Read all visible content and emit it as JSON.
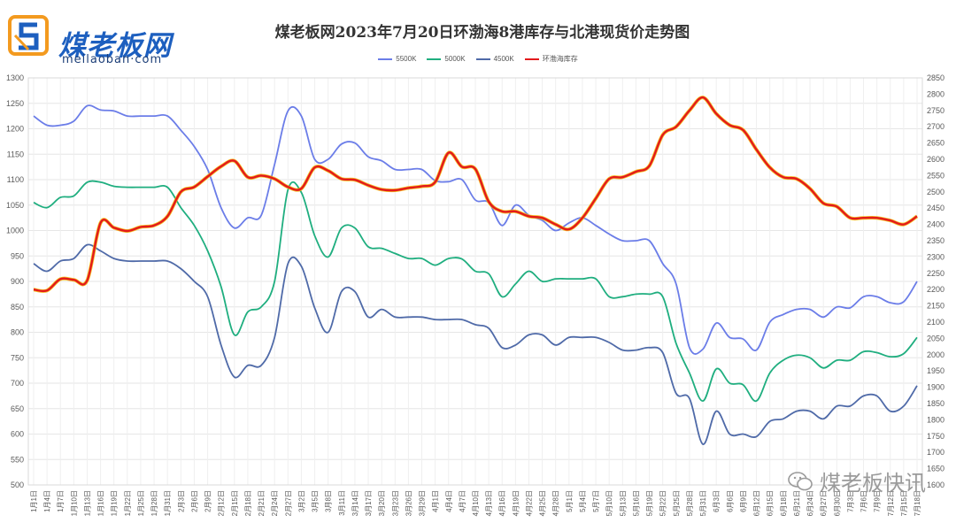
{
  "logo": {
    "name": "煤老板网",
    "domain": "meilaoban·com"
  },
  "watermark": "煤老板快讯",
  "chart_data": {
    "type": "line",
    "title": "煤老板网2023年7月20日环渤海8港库存与北港现货价走势图",
    "xlabel": "",
    "ylabel": "",
    "ylabel_right": "",
    "ylim": [
      500,
      1300
    ],
    "ylim_right": [
      1600,
      2850
    ],
    "yticks": [
      500,
      550,
      600,
      650,
      700,
      750,
      800,
      850,
      900,
      950,
      1000,
      1050,
      1100,
      1150,
      1200,
      1250,
      1300
    ],
    "yticks_right": [
      1600,
      1650,
      1700,
      1750,
      1800,
      1850,
      1900,
      1950,
      2000,
      2050,
      2100,
      2150,
      2200,
      2250,
      2300,
      2350,
      2400,
      2450,
      2500,
      2550,
      2600,
      2650,
      2700,
      2750,
      2800,
      2850
    ],
    "grid": true,
    "legend_position": "top-center",
    "x": [
      "1月1日",
      "1月4日",
      "1月7日",
      "1月10日",
      "1月13日",
      "1月16日",
      "1月19日",
      "1月22日",
      "1月25日",
      "1月28日",
      "1月31日",
      "2月3日",
      "2月6日",
      "2月9日",
      "2月12日",
      "2月15日",
      "2月18日",
      "2月21日",
      "2月24日",
      "2月27日",
      "3月2日",
      "3月5日",
      "3月8日",
      "3月11日",
      "3月14日",
      "3月17日",
      "3月20日",
      "3月23日",
      "3月26日",
      "3月29日",
      "4月1日",
      "4月4日",
      "4月7日",
      "4月10日",
      "4月13日",
      "4月16日",
      "4月19日",
      "4月22日",
      "4月25日",
      "4月28日",
      "5月1日",
      "5月4日",
      "5月7日",
      "5月10日",
      "5月13日",
      "5月16日",
      "5月19日",
      "5月22日",
      "5月25日",
      "5月28日",
      "5月31日",
      "6月3日",
      "6月6日",
      "6月9日",
      "6月12日",
      "6月15日",
      "6月18日",
      "6月21日",
      "6月24日",
      "6月27日",
      "6月30日",
      "7月3日",
      "7月6日",
      "7月9日",
      "7月12日",
      "7月15日",
      "7月18日"
    ],
    "series": [
      {
        "name": "5500K",
        "color": "#6b7de8",
        "axis": "left",
        "values": [
          1225,
          1207,
          1207,
          1215,
          1245,
          1237,
          1235,
          1225,
          1225,
          1225,
          1225,
          1197,
          1165,
          1120,
          1045,
          1005,
          1025,
          1030,
          1130,
          1235,
          1225,
          1140,
          1140,
          1170,
          1172,
          1145,
          1137,
          1120,
          1120,
          1120,
          1098,
          1096,
          1100,
          1060,
          1055,
          1010,
          1050,
          1030,
          1020,
          1000,
          1015,
          1025,
          1010,
          993,
          980,
          980,
          980,
          935,
          895,
          770,
          767,
          818,
          790,
          787,
          765,
          820,
          835,
          845,
          845,
          830,
          850,
          848,
          870,
          870,
          858,
          860,
          900
        ]
      },
      {
        "name": "5000K",
        "color": "#1fae7f",
        "axis": "left",
        "values": [
          1055,
          1045,
          1065,
          1068,
          1095,
          1095,
          1087,
          1085,
          1085,
          1085,
          1085,
          1045,
          1010,
          960,
          890,
          795,
          840,
          850,
          900,
          1080,
          1075,
          990,
          948,
          1005,
          1005,
          968,
          965,
          955,
          945,
          945,
          932,
          945,
          944,
          920,
          915,
          870,
          895,
          920,
          900,
          905,
          905,
          905,
          905,
          870,
          870,
          875,
          875,
          870,
          778,
          720,
          665,
          728,
          700,
          697,
          665,
          720,
          745,
          755,
          750,
          730,
          745,
          745,
          762,
          760,
          752,
          758,
          790
        ]
      },
      {
        "name": "4500K",
        "color": "#4f6aa8",
        "axis": "left",
        "values": [
          935,
          920,
          940,
          945,
          972,
          960,
          945,
          940,
          940,
          940,
          940,
          925,
          900,
          870,
          775,
          712,
          735,
          735,
          790,
          935,
          930,
          848,
          800,
          880,
          880,
          830,
          845,
          830,
          830,
          830,
          825,
          825,
          825,
          815,
          808,
          770,
          775,
          795,
          795,
          775,
          790,
          790,
          790,
          780,
          765,
          765,
          770,
          760,
          680,
          670,
          580,
          645,
          600,
          600,
          595,
          625,
          630,
          645,
          645,
          630,
          655,
          655,
          675,
          675,
          645,
          655,
          695
        ]
      },
      {
        "name": "环渤海库存",
        "color": "#e31a1c",
        "axis": "right",
        "values": [
          2200,
          2197,
          2232,
          2230,
          2228,
          2405,
          2390,
          2380,
          2392,
          2397,
          2425,
          2500,
          2515,
          2547,
          2578,
          2595,
          2545,
          2550,
          2540,
          2515,
          2510,
          2575,
          2565,
          2540,
          2537,
          2520,
          2507,
          2505,
          2512,
          2517,
          2530,
          2620,
          2577,
          2570,
          2470,
          2440,
          2440,
          2425,
          2420,
          2400,
          2385,
          2420,
          2480,
          2540,
          2545,
          2562,
          2580,
          2675,
          2700,
          2750,
          2790,
          2740,
          2705,
          2690,
          2630,
          2575,
          2545,
          2540,
          2510,
          2465,
          2455,
          2420,
          2420,
          2420,
          2412,
          2400,
          2425
        ]
      }
    ]
  }
}
